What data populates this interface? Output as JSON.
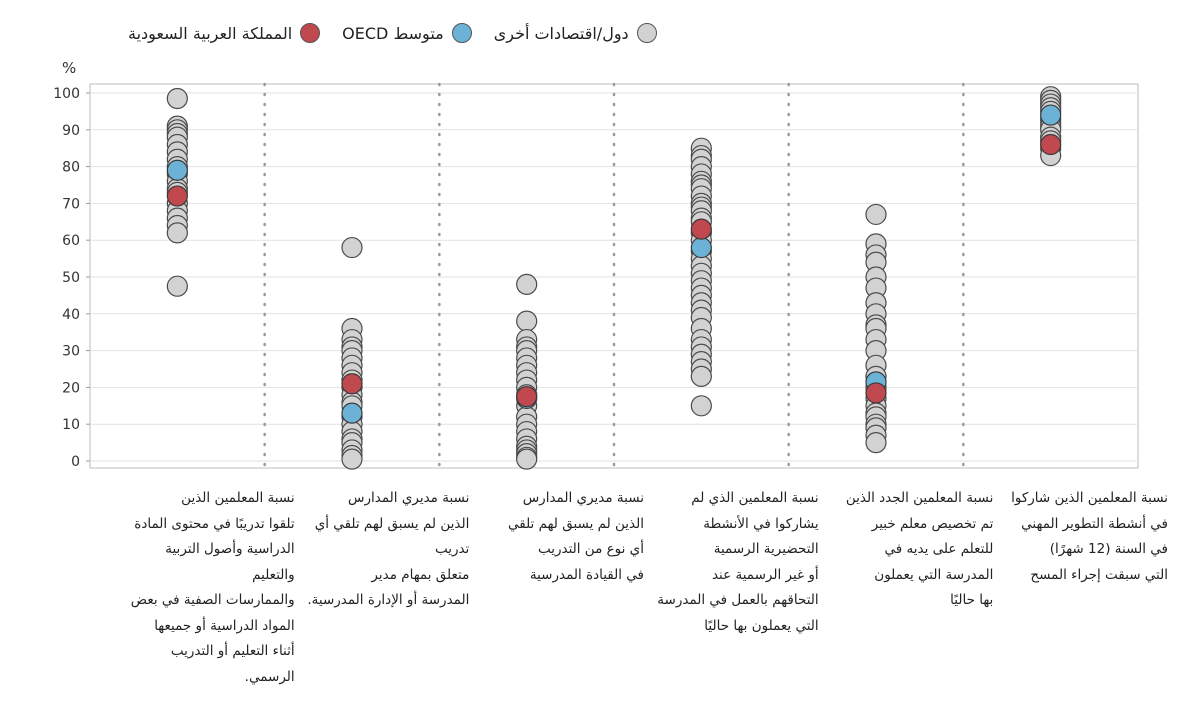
{
  "legend": {
    "items": [
      {
        "label": "المملكة العربية السعودية",
        "color": "#c0484f"
      },
      {
        "label": "متوسط OECD",
        "color": "#6bb2d6"
      },
      {
        "label": "دول/اقتصادات أخرى",
        "color": "#d2d2d2"
      }
    ]
  },
  "chart_data": {
    "type": "scatter",
    "y_unit": "%",
    "ylim": [
      0,
      100
    ],
    "yticks": [
      0,
      10,
      20,
      30,
      40,
      50,
      60,
      70,
      80,
      90,
      100
    ],
    "grid": true,
    "legend_position": "top",
    "categories": [
      "نسبة المعلمين الذين تلقوا تدريبًا في محتوى المادة الدراسية وأصول التربية والتعليم والممارسات الصفية في بعض المواد الدراسية أو جميعها أثناء التعليم أو التدريب الرسمي.",
      "نسبة مديري المدارس الذين لم يسبق لهم تلقي أي تدريب متعلق بمهام مدير المدرسة أو الإدارة المدرسية.",
      "نسبة مديري المدارس الذين لم يسبق لهم تلقي أي نوع من التدريب في القيادة المدرسية",
      "نسبة المعلمين الذي لم يشاركوا في الأنشطة التحضيرية الرسمية أو غير الرسمية عند التحاقهم بالعمل في المدرسة التي يعملون بها حاليًا",
      "نسبة المعلمين الجدد الذين تم تخصيص معلم خبير للتعلم على يديه في المدرسة التي يعملون بها حاليًا",
      "نسبة المعلمين الذين شاركوا في أنشطة التطوير المهني في السنة (12 شهرًا) التي سبقت إجراء المسح"
    ],
    "category_lines": [
      [
        "نسبة المعلمين الذين",
        "تلقوا تدريبًا في محتوى المادة",
        "الدراسية وأصول التربية والتعليم",
        "والممارسات الصفية في بعض",
        "المواد الدراسية أو جميعها",
        "أثناء التعليم أو التدريب الرسمي."
      ],
      [
        "نسبة مديري المدارس",
        "الذين لم يسبق لهم تلقي أي",
        "تدريب",
        "متعلق بمهام مدير",
        "المدرسة أو الإدارة المدرسية."
      ],
      [
        "نسبة مديري المدارس",
        "الذين لم يسبق لهم تلقي",
        "أي نوع من التدريب",
        "في القيادة المدرسية"
      ],
      [
        "نسبة المعلمين الذي لم",
        "يشاركوا في الأنشطة",
        "التحضيرية الرسمية",
        "أو غير الرسمية عند",
        "التحاقهم بالعمل في المدرسة",
        "التي يعملون بها حاليًا"
      ],
      [
        "نسبة المعلمين الجدد الذين",
        "تم تخصيص معلم خبير",
        "للتعلم على يديه في",
        "المدرسة التي يعملون",
        "بها حاليًا"
      ],
      [
        "نسبة المعلمين الذين شاركوا",
        "في أنشطة التطوير المهني",
        "في السنة (12 شهرًا)",
        "التي سبقت إجراء المسح"
      ]
    ],
    "series": [
      {
        "name": "المملكة العربية السعودية",
        "color": "#c0484f",
        "values": [
          72,
          21,
          17.5,
          63,
          18.5,
          86
        ]
      },
      {
        "name": "متوسط OECD",
        "color": "#6bb2d6",
        "values": [
          79,
          13,
          17,
          58,
          21.5,
          94
        ]
      },
      {
        "name": "دول/اقتصادات أخرى",
        "color": "#d2d2d2",
        "values": [
          [
            98.5,
            91,
            90,
            89,
            88,
            86,
            84,
            82,
            80,
            78,
            76,
            74,
            73,
            70,
            68,
            66,
            64,
            62,
            47.5
          ],
          [
            58,
            36,
            33,
            31,
            30,
            28,
            26,
            24,
            22,
            20,
            18,
            16,
            15,
            12,
            10,
            8,
            6,
            5,
            3,
            1.5,
            0.5
          ],
          [
            48,
            38,
            33,
            31,
            30,
            28,
            26,
            24,
            22,
            20,
            18,
            15,
            12,
            10,
            8,
            6,
            4,
            3,
            2,
            1,
            0.5
          ],
          [
            85,
            83,
            82,
            80,
            78,
            76,
            75,
            74,
            72,
            70,
            69,
            68,
            66,
            65,
            62,
            60,
            57,
            55,
            53,
            51,
            49,
            47,
            45,
            43,
            41,
            39,
            36,
            33,
            31,
            29,
            27,
            25,
            23,
            15
          ],
          [
            67,
            59,
            56,
            54,
            50,
            47,
            43,
            40,
            37,
            36,
            33,
            30,
            26,
            23,
            20,
            17,
            15,
            13,
            12,
            10,
            9,
            7,
            5
          ],
          [
            99,
            98,
            97,
            96,
            95,
            93,
            92,
            91,
            90,
            88,
            87,
            85,
            83
          ]
        ]
      }
    ]
  }
}
